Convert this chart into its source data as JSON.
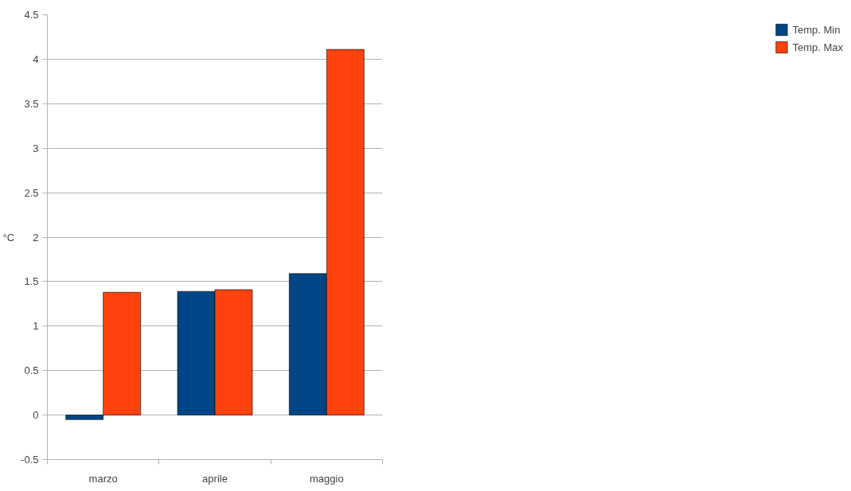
{
  "chart_data": {
    "type": "bar",
    "ylabel": "°C",
    "categories": [
      "marzo",
      "aprile",
      "maggio"
    ],
    "series": [
      {
        "name": "Temp. Min",
        "color": "#004586",
        "values": [
          -0.05,
          1.39,
          1.59
        ]
      },
      {
        "name": "Temp. Max",
        "color": "#ff420e",
        "values": [
          1.38,
          1.41,
          4.11
        ]
      }
    ],
    "ylim": [
      -0.5,
      4.5
    ],
    "yticks": [
      -0.5,
      0,
      0.5,
      1,
      1.5,
      2,
      2.5,
      3,
      3.5,
      4,
      4.5
    ],
    "grid": "y",
    "legend": "right"
  }
}
